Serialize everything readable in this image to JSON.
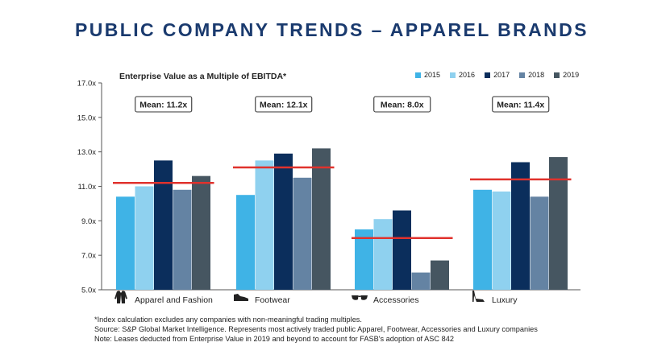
{
  "title": "PUBLIC COMPANY TRENDS – APPAREL BRANDS",
  "chart_data": {
    "type": "bar",
    "title": "Enterprise Value as a Multiple of EBITDA*",
    "categories": [
      "Apparel and Fashion",
      "Footwear",
      "Accessories",
      "Luxury"
    ],
    "category_icons": [
      "jacket-icon",
      "shoe-icon",
      "sunglasses-icon",
      "high-heel-icon"
    ],
    "series": [
      {
        "name": "2015",
        "color": "#3fb3e6",
        "values": [
          10.4,
          10.5,
          8.5,
          10.8
        ]
      },
      {
        "name": "2016",
        "color": "#8fd1ef",
        "values": [
          11.0,
          12.5,
          9.1,
          10.7
        ]
      },
      {
        "name": "2017",
        "color": "#0b2e5c",
        "values": [
          12.5,
          12.9,
          9.6,
          12.4
        ]
      },
      {
        "name": "2018",
        "color": "#6483a3",
        "values": [
          10.8,
          11.5,
          6.0,
          10.4
        ]
      },
      {
        "name": "2019",
        "color": "#465661",
        "values": [
          11.6,
          13.2,
          6.7,
          12.7
        ]
      }
    ],
    "means": [
      11.2,
      12.1,
      8.0,
      11.4
    ],
    "mean_labels": [
      "Mean: 11.2x",
      "Mean: 12.1x",
      "Mean: 8.0x",
      "Mean: 11.4x"
    ],
    "mean_line_color": "#e0322d",
    "ylim": [
      5.0,
      17.0
    ],
    "yticks": [
      5.0,
      7.0,
      9.0,
      11.0,
      13.0,
      15.0,
      17.0
    ],
    "ytick_labels": [
      "5.0x",
      "7.0x",
      "9.0x",
      "11.0x",
      "13.0x",
      "15.0x",
      "17.0x"
    ],
    "legend_position": "top-right",
    "grid": false
  },
  "footnotes": [
    "*Index calculation excludes any companies with non-meaningful trading multiples.",
    "Source: S&P Global Market Intelligence. Represents most actively traded public Apparel, Footwear, Accessories and Luxury companies",
    "Note: Leases deducted from Enterprise Value in 2019 and beyond to account for FASB's adoption of ASC 842"
  ]
}
